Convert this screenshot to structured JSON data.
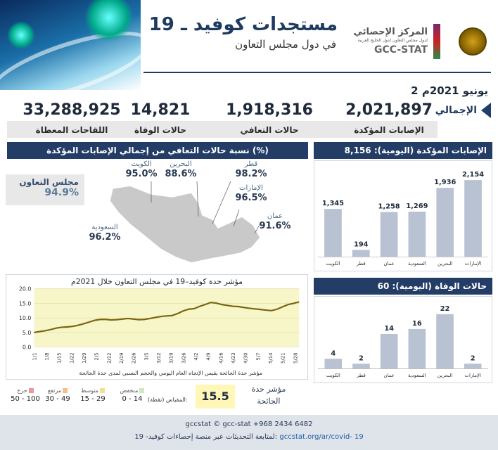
{
  "header": {
    "title": "مستجدات كوفيد ـ 19",
    "subtitle": "في دول مجلس التعاون",
    "org_ar": "المركز الإحصائي",
    "org_ar_sub": "لدول مجلس التعاون لدول الخليج العربية",
    "org_en": "GCC-STAT"
  },
  "date": "2 يونيو 2021م",
  "total_label": "الإجمالي",
  "kpis": [
    {
      "value": "2,021,897",
      "label": "الإصابات المؤكدة"
    },
    {
      "value": "1,918,316",
      "label": "حالات التعافي"
    },
    {
      "value": "14,821",
      "label": "حالات الوفاة"
    },
    {
      "value": "33,288,925",
      "label": "اللقاحات المعطاة"
    }
  ],
  "recovery": {
    "heading": "نسبة حالات التعافي من إجمالي الإصابات المؤكدة (%)",
    "gcc_label": "مجلس التعاون",
    "gcc_value": "94.9%",
    "countries": [
      {
        "name": "الكويت",
        "value": "95.0%"
      },
      {
        "name": "البحرين",
        "value": "88.6%"
      },
      {
        "name": "قطر",
        "value": "98.2%"
      },
      {
        "name": "الإمارات",
        "value": "96.5%"
      },
      {
        "name": "عمان",
        "value": "91.6%"
      },
      {
        "name": "السعودية",
        "value": "96.2%"
      }
    ]
  },
  "chart_data": [
    {
      "type": "bar",
      "title": "الإصابات المؤكدة (اليومية): 8,156",
      "title_label": "الإصابات المؤكدة (اليومية):",
      "title_value": "8,156",
      "categories": [
        "الكويت",
        "قطر",
        "عمان",
        "السعودية",
        "البحرين",
        "الإمارات"
      ],
      "values": [
        1345,
        194,
        1258,
        1269,
        1936,
        2154
      ],
      "value_labels": [
        "1,345",
        "194",
        "1,258",
        "1,269",
        "1,936",
        "2,154"
      ],
      "ylim": [
        0,
        2300
      ],
      "color": "#b8c2d2"
    },
    {
      "type": "bar",
      "title": "حالات الوفاة (اليومية): 60",
      "title_label": "حالات الوفاة (اليومية):",
      "title_value": "60",
      "categories": [
        "الكويت",
        "قطر",
        "عمان",
        "السعودية",
        "البحرين",
        "الإمارات"
      ],
      "values": [
        4,
        2,
        14,
        16,
        22,
        2
      ],
      "value_labels": [
        "4",
        "2",
        "14",
        "16",
        "22",
        "2"
      ],
      "ylim": [
        0,
        24
      ],
      "color": "#b8c2d2"
    },
    {
      "type": "line",
      "title": "مؤشر حدة كوفيد–19 في مجلس التعاون خلال 2021م",
      "note": "مؤشر حدة الجائحة يقيس الإتجاه العام اليومي والحجم النسبي لمدى حدة الجائحة",
      "x_ticks": [
        "1/1",
        "1/8",
        "1/15",
        "1/22",
        "1/29",
        "2/5",
        "2/12",
        "2/19",
        "2/26",
        "3/5",
        "3/12",
        "3/19",
        "3/26",
        "4/2",
        "4/9",
        "4/16",
        "4/23",
        "4/30",
        "5/7",
        "5/14",
        "5/21",
        "5/28"
      ],
      "y_ticks": [
        "0.0",
        "5.0",
        "10.0",
        "15.0",
        "20.0"
      ],
      "ylim": [
        0,
        20
      ],
      "band": [
        0,
        20
      ],
      "values": [
        5.0,
        5.3,
        5.6,
        6.0,
        6.5,
        6.8,
        6.9,
        7.1,
        7.5,
        8.0,
        8.6,
        9.2,
        9.5,
        9.5,
        9.3,
        9.4,
        9.6,
        9.8,
        9.6,
        9.4,
        9.5,
        9.8,
        10.2,
        10.5,
        10.7,
        10.8,
        11.5,
        12.4,
        13.0,
        13.2,
        14.0,
        14.6,
        15.3,
        15.1,
        14.6,
        14.3,
        14.0,
        13.9,
        13.6,
        13.3,
        13.1,
        12.9,
        12.7,
        12.5,
        13.0,
        13.8,
        14.6,
        15.0,
        15.5
      ],
      "series_color": "#7a6410"
    }
  ],
  "severity": {
    "index_label": "مؤشر حدة الجائحة",
    "index_value": "15.5",
    "scale_label": "المقياس (نقطة):",
    "levels": [
      {
        "name": "منخفض",
        "range": "0 - 14",
        "color": "#cfe8c0"
      },
      {
        "name": "متوسط",
        "range": "15 - 29",
        "color": "#f3e08a"
      },
      {
        "name": "مرتفع",
        "range": "30 - 49",
        "color": "#f2c08a"
      },
      {
        "name": "حرج",
        "range": "50 - 100",
        "color": "#e79a9a"
      }
    ]
  },
  "footer": {
    "contacts": "gccstat ©  gcc-stat  +968 2434 6482",
    "follow_text": "لمتابعة التحديثات عبر منصة إحصاءات كوفيد- 19:",
    "url": "gccstat.org/ar/covid- 19"
  }
}
